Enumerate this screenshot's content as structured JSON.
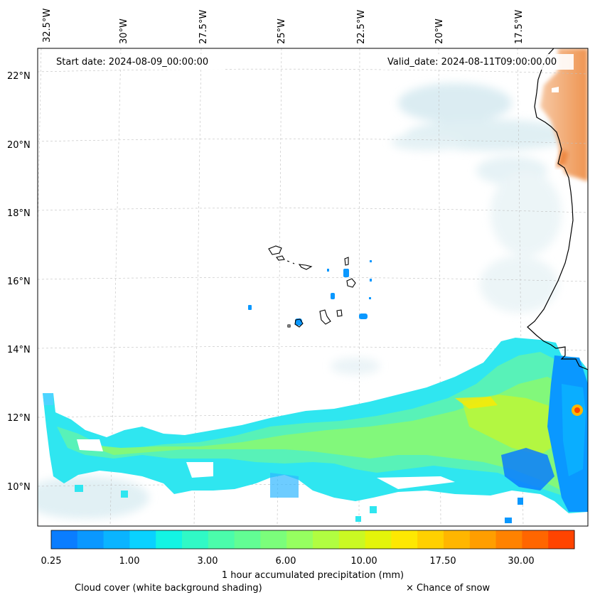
{
  "map": {
    "start_date": "Start date: 2024-08-09_00:00:00",
    "valid_date": "Valid_date: 2024-08-11T09:00:00.00",
    "lon_labels": [
      "32.5°W",
      "30°W",
      "27.5°W",
      "25°W",
      "22.5°W",
      "20°W",
      "17.5°W"
    ],
    "lat_labels": [
      "22°N",
      "20°N",
      "18°N",
      "16°N",
      "14°N",
      "12°N",
      "10°N"
    ],
    "land_colors": {
      "coast": "#000000",
      "warm": "#f2a56a",
      "cloud": "#d4e9ef"
    },
    "precip_band": "Tropical rain band across 9-13°N"
  },
  "colorbar": {
    "ticks": [
      "0.25",
      "1.00",
      "3.00",
      "6.00",
      "10.00",
      "17.50",
      "30.00"
    ],
    "colors": [
      "#0a7dff",
      "#0a98ff",
      "#0ab4ff",
      "#09d2ff",
      "#13f4e4",
      "#30f9c6",
      "#4bfcab",
      "#62fd94",
      "#7bfe7b",
      "#96ff60",
      "#b1fd41",
      "#caf923",
      "#e4f40a",
      "#fde802",
      "#ffd000",
      "#ffb600",
      "#ff9e00",
      "#ff8200",
      "#ff6600",
      "#ff4400"
    ],
    "title": "1 hour accumulated precipitation (mm)"
  },
  "legend": {
    "cloud": "Cloud cover (white background shading)",
    "snow": "× Chance of snow"
  }
}
